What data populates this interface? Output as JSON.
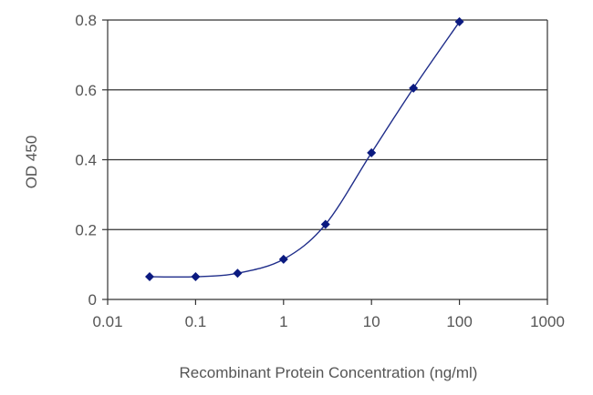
{
  "chart_data": {
    "type": "line",
    "title": "",
    "xlabel": "Recombinant Protein Concentration (ng/ml)",
    "ylabel": "OD 450",
    "x_scale": "log",
    "xlim": [
      0.01,
      1000
    ],
    "ylim": [
      0,
      0.8
    ],
    "x_ticks": [
      "0.01",
      "0.1",
      "1",
      "10",
      "100",
      "1000"
    ],
    "y_ticks": [
      "0",
      "0.2",
      "0.4",
      "0.6",
      "0.8"
    ],
    "grid": "horizontal",
    "legend": "none",
    "series": [
      {
        "x": [
          0.03,
          0.1,
          0.3,
          1,
          3,
          10,
          30,
          100
        ],
        "y": [
          0.065,
          0.065,
          0.075,
          0.115,
          0.215,
          0.42,
          0.605,
          0.795
        ],
        "color": "#0b1a80"
      }
    ]
  }
}
